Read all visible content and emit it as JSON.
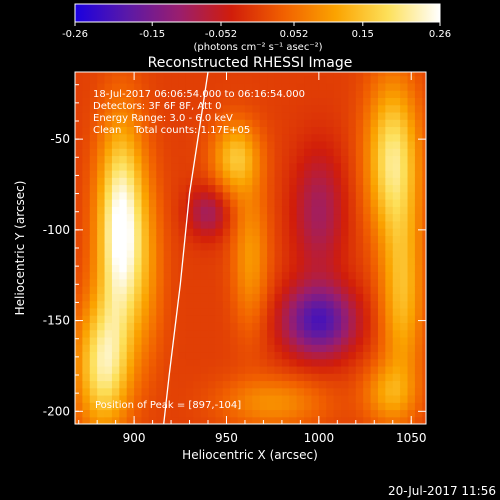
{
  "chart_data": {
    "type": "heatmap",
    "title": "Reconstructed RHESSI Image",
    "xlabel": "Heliocentric X (arcsec)",
    "ylabel": "Heliocentric Y (arcsec)",
    "xlim": [
      868,
      1058
    ],
    "ylim": [
      -207,
      -13
    ],
    "x_ticks": [
      900,
      950,
      1000,
      1050
    ],
    "y_ticks": [
      -50,
      -100,
      -150,
      -200
    ],
    "colorbar": {
      "range": [
        -0.26,
        0.26
      ],
      "tick_values": [
        -0.26,
        -0.15,
        -0.052,
        0.052,
        0.15,
        0.26
      ],
      "tick_labels": [
        "-0.26",
        "-0.15",
        "-0.052",
        "0.052",
        "0.15",
        "0.26"
      ],
      "unit_label": "(photons cm⁻² s⁻¹ asec⁻²)",
      "colors": [
        "#1a00e0",
        "#5a19a8",
        "#9a1e6e",
        "#d11d0a",
        "#f16000",
        "#fba300",
        "#fde05a",
        "#ffffff"
      ]
    },
    "annotations": [
      "18-Jul-2017 06:06:54.000 to 06:16:54.000",
      "Detectors: 3F 6F 8F, Att 0",
      "Energy Range: 3.0 - 6.0 keV",
      "Clean    Total counts: 1.17E+05"
    ],
    "peak_label": "Position of Peak = [897,-104]",
    "peak": [
      897,
      -104
    ],
    "limb_line": [
      [
        940,
        -13
      ],
      [
        936,
        -40
      ],
      [
        930,
        -80
      ],
      [
        925,
        -130
      ],
      [
        919,
        -180
      ],
      [
        916,
        -207
      ]
    ],
    "blobs": [
      {
        "x": 893,
        "y": -100,
        "sx": 9,
        "sy": 40,
        "amp": 0.28
      },
      {
        "x": 883,
        "y": -175,
        "sx": 10,
        "sy": 25,
        "amp": 0.2
      },
      {
        "x": 908,
        "y": -125,
        "sx": 7,
        "sy": 35,
        "amp": 0.05
      },
      {
        "x": 955,
        "y": -60,
        "sx": 9,
        "sy": 14,
        "amp": 0.15
      },
      {
        "x": 963,
        "y": -115,
        "sx": 7,
        "sy": 28,
        "amp": 0.1
      },
      {
        "x": 1040,
        "y": -60,
        "sx": 10,
        "sy": 30,
        "amp": 0.2
      },
      {
        "x": 1045,
        "y": -135,
        "sx": 8,
        "sy": 35,
        "amp": 0.14
      },
      {
        "x": 1038,
        "y": -190,
        "sx": 10,
        "sy": 12,
        "amp": 0.1
      },
      {
        "x": 975,
        "y": -195,
        "sx": 20,
        "sy": 10,
        "amp": 0.09
      },
      {
        "x": 1000,
        "y": -150,
        "sx": 14,
        "sy": 14,
        "amp": -0.2
      },
      {
        "x": 1000,
        "y": -90,
        "sx": 10,
        "sy": 25,
        "amp": -0.1
      },
      {
        "x": 940,
        "y": -90,
        "sx": 8,
        "sy": 10,
        "amp": -0.1
      }
    ]
  },
  "footer_date": "20-Jul-2017 11:56"
}
